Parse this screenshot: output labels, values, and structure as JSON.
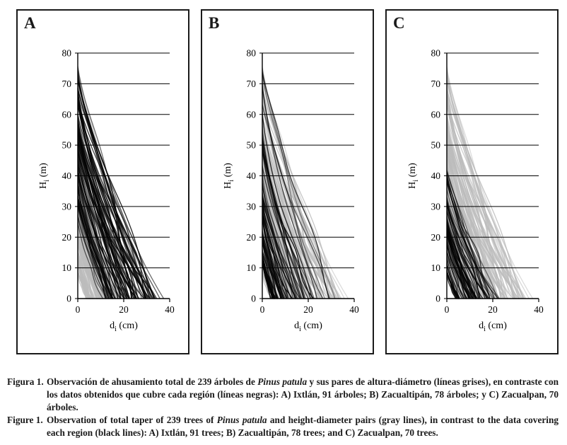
{
  "figure": {
    "panels": [
      {
        "label": "A",
        "region": "Ixtlán"
      },
      {
        "label": "B",
        "region": "Zacualtipán"
      },
      {
        "label": "C",
        "region": "Zacualpan"
      }
    ]
  },
  "chart_data": {
    "type": "line",
    "title": "",
    "xlabel": "di (cm)",
    "ylabel": "Hi (m)",
    "x_axis": {
      "symbol": "d",
      "subscript": "i",
      "unit": "(cm)"
    },
    "y_axis": {
      "symbol": "H",
      "subscript": "i",
      "unit": "(m)"
    },
    "xlim": [
      0,
      40
    ],
    "ylim": [
      0,
      80
    ],
    "x_ticks": [
      0,
      20,
      40
    ],
    "y_ticks": [
      0,
      10,
      20,
      30,
      40,
      50,
      60,
      70,
      80
    ],
    "grid": "horizontal",
    "legend": "none",
    "total_gray_trees": 239,
    "panels": [
      {
        "label": "A",
        "region": "Ixtlán",
        "black_trees": 91,
        "gray_trees": 239,
        "black_max_height_m": 76,
        "black_max_basal_diameter_cm": 39
      },
      {
        "label": "B",
        "region": "Zacualtipán",
        "black_trees": 78,
        "gray_trees": 239,
        "black_max_height_m": 76,
        "black_max_basal_diameter_cm": 31
      },
      {
        "label": "C",
        "region": "Zacualpan",
        "black_trees": 70,
        "gray_trees": 239,
        "black_max_height_m": 42,
        "black_max_basal_diameter_cm": 22
      }
    ],
    "generator": {
      "regions": [
        {
          "name": "Ixtlán",
          "n": 91,
          "seed": 9101,
          "h_min": 20,
          "h_max": 76,
          "h_skew": 0.75,
          "d_ratio": [
            0.34,
            0.52
          ],
          "d_max": 39
        },
        {
          "name": "Zacualtipán",
          "n": 78,
          "seed": 7802,
          "h_min": 12,
          "h_max": 76,
          "h_skew": 1.9,
          "d_ratio": [
            0.3,
            0.48
          ],
          "d_max": 31
        },
        {
          "name": "Zacualpan",
          "n": 70,
          "seed": 7003,
          "h_min": 8,
          "h_max": 42,
          "h_skew": 1.1,
          "d_ratio": [
            0.4,
            0.58
          ],
          "d_max": 22
        }
      ]
    }
  },
  "caption": {
    "es": {
      "label": "Figura 1.",
      "pre": "Observación de ahusamiento total de 239 árboles de ",
      "italic": "Pinus patula",
      "post": " y sus pares de altura-diámetro (líneas grises), en contraste con los datos obtenidos que cubre cada región (líneas negras): A) Ixtlán, 91 árboles; B) Zacualtipán, 78 árboles; y C) Zacualpan, 70 árboles."
    },
    "en": {
      "label": "Figure 1.",
      "pre": "Observation of total taper of 239 trees of ",
      "italic": "Pinus patula",
      "post": " and height-diameter pairs (gray lines), in contrast to the data covering each region (black lines): A) Ixtlán, 91 trees; B) Zacualtipán, 78 trees; and C) Zacualpan, 70 trees."
    }
  },
  "colors": {
    "axis": "#000000",
    "gray_line": "#bcbcbc",
    "black_line": "#050505",
    "panel_border": "#1a1a1a",
    "background": "#ffffff",
    "text": "#1a1a1a"
  }
}
